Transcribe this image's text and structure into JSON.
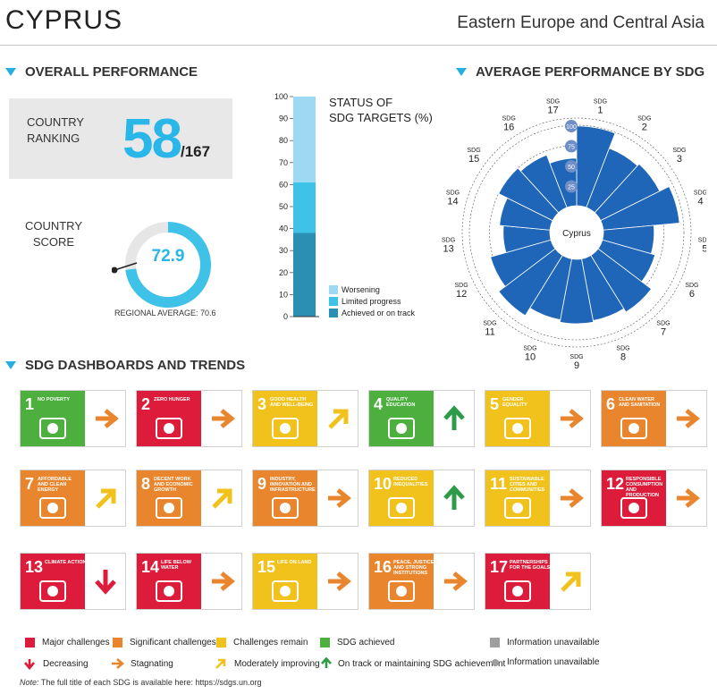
{
  "header": {
    "country": "CYPRUS",
    "region": "Eastern Europe and Central Asia"
  },
  "overall": {
    "title": "OVERALL PERFORMANCE",
    "ranking_label_1": "COUNTRY",
    "ranking_label_2": "RANKING",
    "rank": "58",
    "rank_total": "/167",
    "score_label_1": "COUNTRY",
    "score_label_2": "SCORE",
    "score": "72.9",
    "score_value": 72.9,
    "regional_average": "REGIONAL AVERAGE: 70.6"
  },
  "status": {
    "title_1": "STATUS OF",
    "title_2": "SDG TARGETS (%)",
    "ticks": [
      "0",
      "10",
      "20",
      "30",
      "40",
      "50",
      "60",
      "70",
      "80",
      "90",
      "100"
    ],
    "legend": [
      {
        "label": "Worsening",
        "color": "#9dd9f3"
      },
      {
        "label": "Limited progress",
        "color": "#3ec2e8"
      },
      {
        "label": "Achieved or on track",
        "color": "#2a8fb3"
      }
    ]
  },
  "radar": {
    "title": "AVERAGE PERFORMANCE BY SDG",
    "center_label": "Cyprus",
    "ring_labels": [
      "25",
      "50",
      "75",
      "100"
    ],
    "sdg_prefix": "SDG",
    "sdg_numbers": [
      "1",
      "2",
      "3",
      "4",
      "5",
      "6",
      "7",
      "8",
      "9",
      "10",
      "11",
      "12",
      "13",
      "14",
      "15",
      "16",
      "17"
    ]
  },
  "chart_data": [
    {
      "type": "bar",
      "title": "STATUS OF SDG TARGETS (%)",
      "categories": [
        "Cyprus"
      ],
      "series": [
        {
          "name": "Achieved or on track",
          "values": [
            38
          ]
        },
        {
          "name": "Limited progress",
          "values": [
            23
          ]
        },
        {
          "name": "Worsening",
          "values": [
            39
          ]
        }
      ],
      "ylim": [
        0,
        100
      ],
      "stacked": true
    },
    {
      "type": "bar",
      "title": "AVERAGE PERFORMANCE BY SDG",
      "categories": [
        "1",
        "2",
        "3",
        "4",
        "5",
        "6",
        "7",
        "8",
        "9",
        "10",
        "11",
        "12",
        "13",
        "14",
        "15",
        "16",
        "17"
      ],
      "values": [
        99,
        79,
        82,
        95,
        63,
        68,
        83,
        78,
        80,
        77,
        88,
        78,
        58,
        63,
        75,
        70,
        59
      ],
      "ylim": [
        0,
        100
      ],
      "polar": true
    }
  ],
  "dashboards": {
    "title": "SDG DASHBOARDS AND TRENDS",
    "tiles": [
      {
        "num": "1",
        "label": "NO POVERTY",
        "color": "#4caf3e",
        "trend": "stagnating",
        "trend_color": "#e9862d"
      },
      {
        "num": "2",
        "label": "ZERO HUNGER",
        "color": "#dd1c3b",
        "trend": "stagnating",
        "trend_color": "#e9862d"
      },
      {
        "num": "3",
        "label": "GOOD HEALTH AND WELL-BEING",
        "color": "#f1c21b",
        "trend": "moderately",
        "trend_color": "#f1c21b"
      },
      {
        "num": "4",
        "label": "QUALITY EDUCATION",
        "color": "#4caf3e",
        "trend": "ontrack",
        "trend_color": "#2e9b48"
      },
      {
        "num": "5",
        "label": "GENDER EQUALITY",
        "color": "#f1c21b",
        "trend": "stagnating",
        "trend_color": "#e9862d"
      },
      {
        "num": "6",
        "label": "CLEAN WATER AND SANITATION",
        "color": "#e9862d",
        "trend": "stagnating",
        "trend_color": "#e9862d"
      },
      {
        "num": "7",
        "label": "AFFORDABLE AND CLEAN ENERGY",
        "color": "#e9862d",
        "trend": "moderately",
        "trend_color": "#f1c21b"
      },
      {
        "num": "8",
        "label": "DECENT WORK AND ECONOMIC GROWTH",
        "color": "#e9862d",
        "trend": "moderately",
        "trend_color": "#f1c21b"
      },
      {
        "num": "9",
        "label": "INDUSTRY, INNOVATION AND INFRASTRUCTURE",
        "color": "#e9862d",
        "trend": "stagnating",
        "trend_color": "#e9862d"
      },
      {
        "num": "10",
        "label": "REDUCED INEQUALITIES",
        "color": "#f1c21b",
        "trend": "ontrack",
        "trend_color": "#2e9b48"
      },
      {
        "num": "11",
        "label": "SUSTAINABLE CITIES AND COMMUNITIES",
        "color": "#f1c21b",
        "trend": "stagnating",
        "trend_color": "#e9862d"
      },
      {
        "num": "12",
        "label": "RESPONSIBLE CONSUMPTION AND PRODUCTION",
        "color": "#dd1c3b",
        "trend": "stagnating",
        "trend_color": "#e9862d"
      },
      {
        "num": "13",
        "label": "CLIMATE ACTION",
        "color": "#dd1c3b",
        "trend": "decreasing",
        "trend_color": "#dd1c3b"
      },
      {
        "num": "14",
        "label": "LIFE BELOW WATER",
        "color": "#dd1c3b",
        "trend": "stagnating",
        "trend_color": "#e9862d"
      },
      {
        "num": "15",
        "label": "LIFE ON LAND",
        "color": "#f1c21b",
        "trend": "stagnating",
        "trend_color": "#e9862d"
      },
      {
        "num": "16",
        "label": "PEACE, JUSTICE AND STRONG INSTITUTIONS",
        "color": "#e9862d",
        "trend": "stagnating",
        "trend_color": "#e9862d"
      },
      {
        "num": "17",
        "label": "PARTNERSHIPS FOR THE GOALS",
        "color": "#dd1c3b",
        "trend": "moderately",
        "trend_color": "#f1c21b"
      }
    ]
  },
  "legend": {
    "major": "Major challenges",
    "significant": "Significant challenges",
    "remain": "Challenges remain",
    "achieved": "SDG achieved",
    "info1": "Information unavailable",
    "decreasing": "Decreasing",
    "stagnating": "Stagnating",
    "moderately": "Moderately improving",
    "ontrack": "On track or maintaining SDG achievement",
    "info2": "Information unavailable",
    "colors": {
      "red": "#dd1c3b",
      "orange": "#e9862d",
      "yellow": "#f1c21b",
      "green": "#4caf3e",
      "grey": "#9e9e9e"
    }
  },
  "note": {
    "label": "Note:",
    "text": " The full title of each SDG is available here: https://sdgs.un.org"
  }
}
